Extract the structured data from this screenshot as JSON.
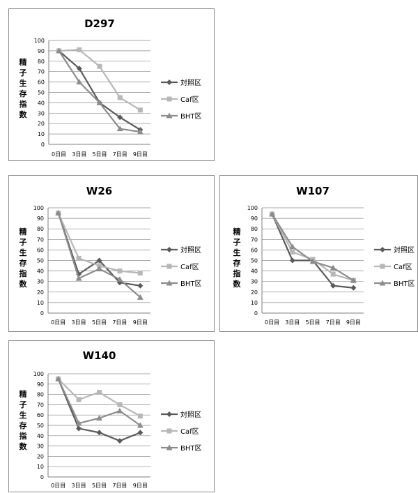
{
  "colors": {
    "series": [
      "#5a5a5a",
      "#b7b7b7",
      "#8c8c8c"
    ],
    "grid": "#8a8a8a",
    "text": "#000000"
  },
  "chart_data": [
    {
      "type": "line",
      "title": "D297",
      "ylabel": "精子生存指数",
      "xlabel": "",
      "categories": [
        "0日目",
        "3日目",
        "5日目",
        "7日目",
        "9日目"
      ],
      "ylim": [
        0,
        100
      ],
      "yticks": [
        0,
        10,
        20,
        30,
        40,
        50,
        60,
        70,
        80,
        90,
        100
      ],
      "grid": true,
      "legend_position": "right",
      "series": [
        {
          "name": "対照区",
          "marker": "diamond",
          "values": [
            90,
            73,
            40,
            26,
            14
          ]
        },
        {
          "name": "Caf区",
          "marker": "square",
          "values": [
            90,
            91,
            75,
            45,
            33
          ]
        },
        {
          "name": "BHT区",
          "marker": "triangle",
          "values": [
            90,
            60,
            40,
            15,
            12
          ]
        }
      ]
    },
    {
      "type": "line",
      "title": "W26",
      "ylabel": "精子生存指数",
      "xlabel": "",
      "categories": [
        "0日目",
        "3日目",
        "5日目",
        "7日目",
        "9日目"
      ],
      "ylim": [
        0,
        100
      ],
      "yticks": [
        0,
        10,
        20,
        30,
        40,
        50,
        60,
        70,
        80,
        90,
        100
      ],
      "grid": true,
      "legend_position": "right",
      "series": [
        {
          "name": "対照区",
          "marker": "diamond",
          "values": [
            95,
            37,
            50,
            29,
            26
          ]
        },
        {
          "name": "Caf区",
          "marker": "square",
          "values": [
            95,
            52,
            45,
            40,
            38
          ]
        },
        {
          "name": "BHT区",
          "marker": "triangle",
          "values": [
            95,
            33,
            42,
            32,
            15
          ]
        }
      ]
    },
    {
      "type": "line",
      "title": "W107",
      "ylabel": "精子生存指数",
      "xlabel": "",
      "categories": [
        "0日目",
        "3日目",
        "5日目",
        "7日目",
        "9日目"
      ],
      "ylim": [
        0,
        100
      ],
      "yticks": [
        0,
        10,
        20,
        30,
        40,
        50,
        60,
        70,
        80,
        90,
        100
      ],
      "grid": true,
      "legend_position": "right",
      "series": [
        {
          "name": "対照区",
          "marker": "diamond",
          "values": [
            94,
            50,
            50,
            26,
            24
          ]
        },
        {
          "name": "Caf区",
          "marker": "square",
          "values": [
            94,
            58,
            51,
            37,
            31
          ]
        },
        {
          "name": "BHT区",
          "marker": "triangle",
          "values": [
            94,
            63,
            49,
            43,
            31
          ]
        }
      ]
    },
    {
      "type": "line",
      "title": "W140",
      "ylabel": "精子生存指数",
      "xlabel": "",
      "categories": [
        "0日目",
        "3日目",
        "5日目",
        "7日目",
        "9日目"
      ],
      "ylim": [
        0,
        100
      ],
      "yticks": [
        0,
        10,
        20,
        30,
        40,
        50,
        60,
        70,
        80,
        90,
        100
      ],
      "grid": true,
      "legend_position": "right",
      "series": [
        {
          "name": "対照区",
          "marker": "diamond",
          "values": [
            95,
            47,
            43,
            35,
            43
          ]
        },
        {
          "name": "Caf区",
          "marker": "square",
          "values": [
            95,
            75,
            82,
            70,
            59
          ]
        },
        {
          "name": "BHT区",
          "marker": "triangle",
          "values": [
            95,
            52,
            57,
            64,
            50
          ]
        }
      ]
    }
  ]
}
